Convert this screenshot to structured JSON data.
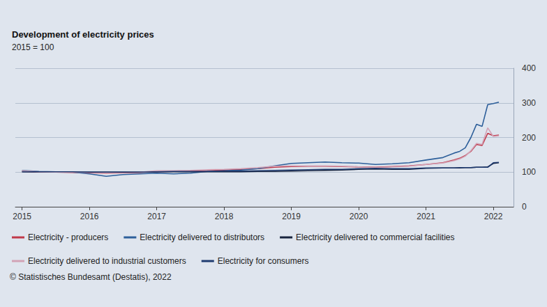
{
  "chart_data": {
    "type": "line",
    "title": "Development of electricity prices",
    "subtitle": "2015 = 100",
    "source": "© Statistisches Bundesamt (Destatis), 2022",
    "x": [
      2015.0,
      2015.25,
      2015.5,
      2015.75,
      2016.0,
      2016.25,
      2016.5,
      2016.75,
      2017.0,
      2017.25,
      2017.5,
      2017.75,
      2018.0,
      2018.25,
      2018.5,
      2018.75,
      2019.0,
      2019.25,
      2019.5,
      2019.75,
      2020.0,
      2020.25,
      2020.5,
      2020.75,
      2021.0,
      2021.25,
      2021.417,
      2021.5,
      2021.583,
      2021.667,
      2021.75,
      2021.833,
      2021.917,
      2022.0,
      2022.083
    ],
    "series": [
      {
        "name": "Electricity - producers",
        "color": "#c0394a",
        "values": [
          102,
          100,
          100,
          99,
          98,
          97,
          98,
          99,
          101,
          102,
          103,
          104,
          106,
          108,
          110,
          114,
          116,
          117,
          117,
          116,
          115,
          114,
          116,
          118,
          122,
          127,
          135,
          140,
          148,
          160,
          180,
          177,
          212,
          205,
          207
        ]
      },
      {
        "name": "Electricity delivered to distributors",
        "color": "#2d5f9a",
        "values": [
          105,
          102,
          101,
          100,
          95,
          88,
          93,
          95,
          97,
          95,
          97,
          102,
          104,
          106,
          110,
          118,
          125,
          127,
          129,
          127,
          126,
          122,
          124,
          127,
          135,
          142,
          155,
          160,
          170,
          200,
          238,
          232,
          295,
          298,
          302
        ]
      },
      {
        "name": "Electricity delivered to commercial facilities",
        "color": "#17233d",
        "values": [
          101,
          101,
          101,
          100,
          100,
          100,
          100,
          100,
          101,
          101,
          101,
          101,
          101,
          101,
          102,
          102,
          103,
          104,
          105,
          106,
          108,
          109,
          108,
          108,
          111,
          112,
          112,
          112,
          113,
          113,
          114,
          114,
          115,
          125,
          127
        ]
      },
      {
        "name": "Electricity delivered to industrial customers",
        "color": "#d2a3b6",
        "values": [
          104,
          101,
          100,
          100,
          99,
          98,
          99,
          100,
          104,
          104,
          105,
          107,
          108,
          110,
          113,
          117,
          118,
          118,
          118,
          117,
          115,
          113,
          115,
          117,
          122,
          126,
          133,
          138,
          146,
          162,
          183,
          180,
          228,
          203,
          205
        ]
      },
      {
        "name": "Electricity for consumers",
        "color": "#1f3b70",
        "values": [
          101,
          101,
          101,
          101,
          100,
          100,
          100,
          100,
          101,
          102,
          102,
          102,
          103,
          103,
          104,
          105,
          106,
          107,
          108,
          108,
          110,
          111,
          110,
          110,
          112,
          112,
          112,
          113,
          113,
          113,
          114,
          114,
          114,
          127,
          128
        ]
      }
    ],
    "xlim": [
      2014.9,
      2022.3
    ],
    "xticks": [
      2015,
      2016,
      2017,
      2018,
      2019,
      2020,
      2021,
      2022
    ],
    "ylim": [
      0,
      400
    ],
    "yticks": [
      0,
      100,
      200,
      300,
      400
    ],
    "grid": true,
    "legend": "bottom-left"
  }
}
